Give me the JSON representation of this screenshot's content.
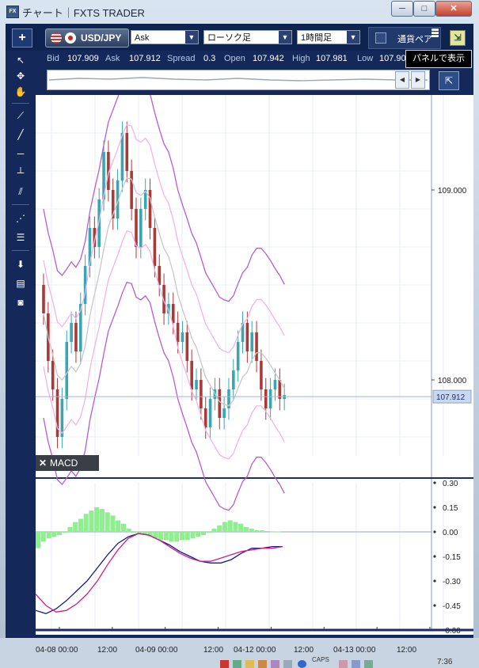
{
  "window": {
    "title": "チャート｜FXTS TRADER",
    "icon_text": "FX",
    "min_label": "─",
    "max_label": "□",
    "close_label": "✕"
  },
  "toolbar": {
    "add_label": "+",
    "symbol": "USD/JPY",
    "price_type": "Ask",
    "chart_type": "ローソク足",
    "timeframe": "1時間足",
    "currency_panel_label": "通貨ペア",
    "dock_icon": "dock-icon",
    "tooltip": "パネルで表示"
  },
  "quote": {
    "bid_label": "Bid",
    "bid": "107.909",
    "ask_label": "Ask",
    "ask": "107.912",
    "spread_label": "Spread",
    "spread": "0.3",
    "open_label": "Open",
    "open": "107.942",
    "high_label": "High",
    "high": "107.981",
    "low_label": "Low",
    "low": "107.90"
  },
  "tools": [
    "cursor-icon",
    "crosshair-icon",
    "hand-icon",
    "trendline-icon",
    "line-icon",
    "horizontal-line-icon",
    "vertical-line-icon",
    "parallel-lines-icon",
    "fibonacci-fan-icon",
    "fibonacci-retracement-icon",
    "download-icon",
    "list-icon",
    "camera-icon"
  ],
  "chart_data": [
    {
      "type": "candlestick",
      "y_ticks": [
        "109.000",
        "108.000"
      ],
      "ylim": [
        107.6,
        109.5
      ],
      "current_price_label": "107.912",
      "current_price": 107.912,
      "indicators": [
        "Bollinger Bands",
        "Moving Average"
      ]
    },
    {
      "type": "bar",
      "title": "MACD",
      "y_ticks": [
        "0.30",
        "0.15",
        "0.00",
        "-0.15",
        "-0.30",
        "-0.45",
        "-0.60"
      ],
      "ylim": [
        -0.6,
        0.3
      ],
      "colors": {
        "histogram": "#90ee90",
        "macd": "#1a1a8a",
        "signal": "#cc1f8a"
      }
    }
  ],
  "time_axis": [
    "04-08 00:00",
    "12:00",
    "04-09 00:00",
    "12:00",
    "04-12 00:00",
    "12:00",
    "04-13 00:00",
    "12:00"
  ],
  "tray": {
    "caps": "CAPS",
    "clock": "7:36"
  }
}
